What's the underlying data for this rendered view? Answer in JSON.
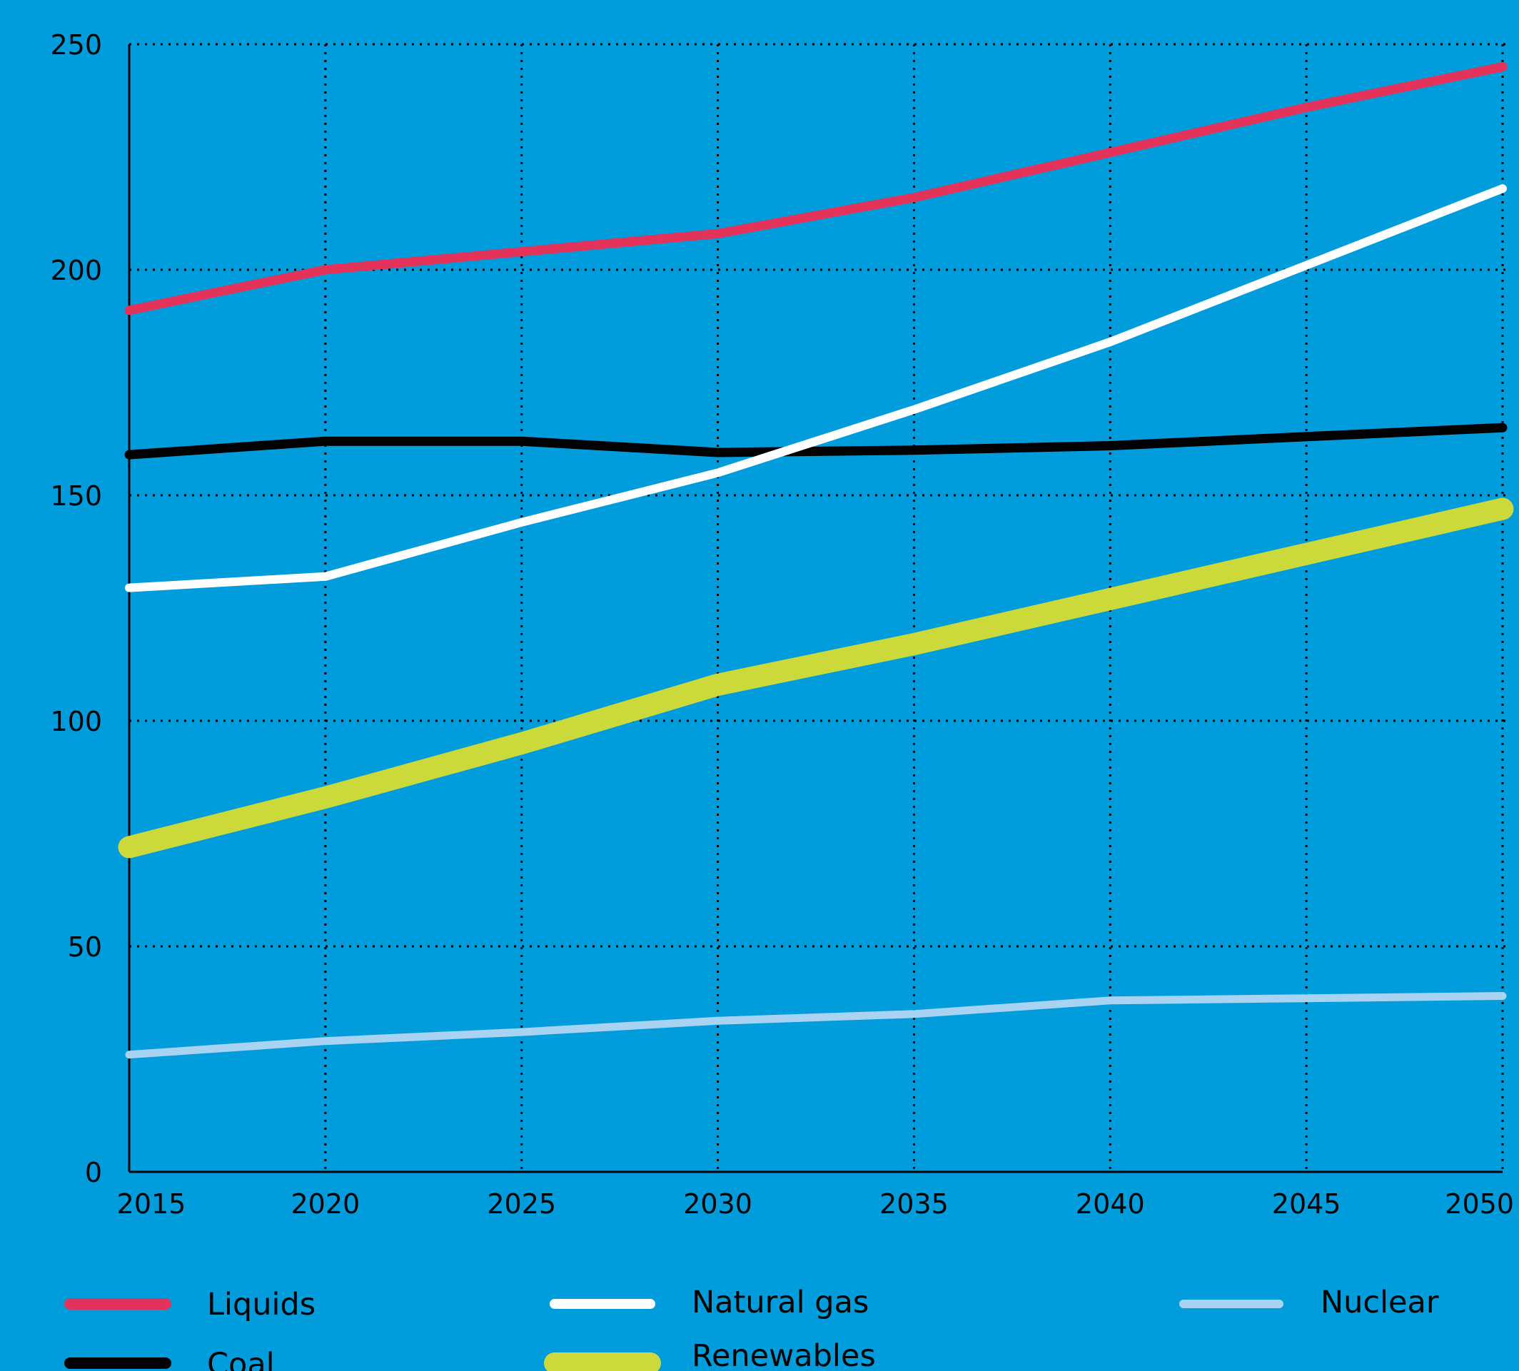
{
  "chart_data": {
    "type": "line",
    "x": [
      2015,
      2020,
      2025,
      2030,
      2035,
      2040,
      2045,
      2050
    ],
    "xlim": [
      2015,
      2050
    ],
    "ylim": [
      0,
      250
    ],
    "xticks": [
      "2015",
      "2020",
      "2025",
      "2030",
      "2035",
      "2040",
      "2045",
      "2050"
    ],
    "yticks": [
      "0",
      "50",
      "100",
      "150",
      "200",
      "250"
    ],
    "grid": true,
    "legend_position": "bottom",
    "series": [
      {
        "name": "Liquids",
        "color": "#e4335a",
        "values": [
          191,
          200,
          204,
          208,
          216,
          226,
          236,
          245
        ]
      },
      {
        "name": "Coal",
        "color": "#000000",
        "values": [
          159,
          162,
          162,
          159.5,
          160,
          161,
          163,
          165
        ]
      },
      {
        "name": "Natural gas",
        "color": "#ffffff",
        "values": [
          129.5,
          132,
          144,
          155,
          169,
          184,
          201,
          218
        ]
      },
      {
        "name": "Renewables",
        "color": "#cbd93b",
        "values": [
          72,
          83,
          95,
          108,
          117,
          127,
          137,
          147
        ]
      },
      {
        "name": "Nuclear",
        "color": "#a9d3f2",
        "values": [
          26,
          29,
          31,
          33.5,
          35,
          38,
          38.5,
          39
        ]
      }
    ]
  }
}
